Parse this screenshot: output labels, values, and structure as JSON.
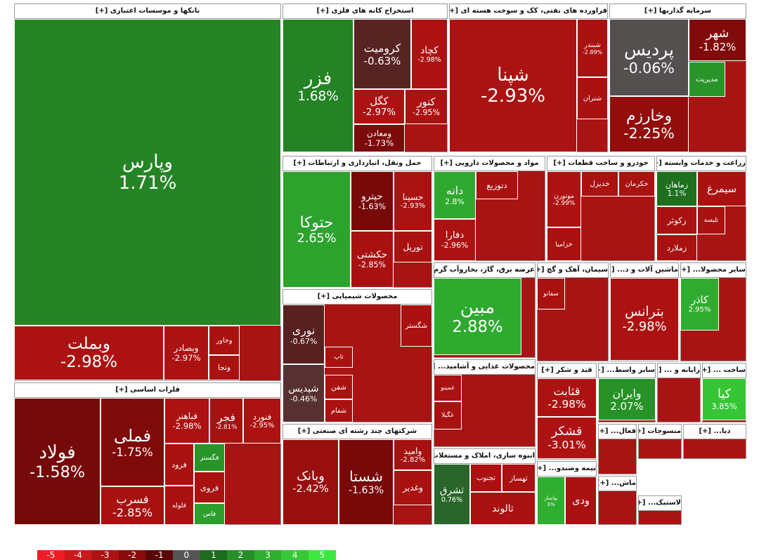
{
  "chart_data": {
    "type": "treemap",
    "sectors": [
      {
        "name": "بانکها و موسسات اعتباری [+]",
        "labels": [
          "وپارس",
          "وبملت",
          "وبصادر",
          "وخاور",
          "وتجا"
        ],
        "values": [
          1.71,
          -2.98,
          -2.97,
          -2.9,
          -2.9
        ],
        "value_labels": [
          "1.71%",
          "-2.98%",
          "-2.97%",
          null,
          null
        ]
      },
      {
        "name": "استخراج کانه های فلزی [+]",
        "labels": [
          "فزر",
          "کرومیت",
          "کچاد",
          "کگل",
          "کنور",
          "ومعادن"
        ],
        "values": [
          1.68,
          -0.63,
          -2.98,
          -2.97,
          -2.95,
          -1.73
        ],
        "value_labels": [
          "1.68%",
          "-0.63%",
          "-2.98%",
          "-2.97%",
          "-2.95%",
          "-1.73%"
        ]
      },
      {
        "name": "فراورده های نفتی، کک و سوخت هسته ای [+]",
        "labels": [
          "شپنا",
          "شبندر",
          "شتران"
        ],
        "values": [
          -2.93,
          -2.89,
          -2.9
        ],
        "value_labels": [
          "-2.93%",
          "-2.89%",
          null
        ]
      },
      {
        "name": "سرمایه گذاریها [+]",
        "labels": [
          "پردیس",
          "وخارزم",
          "شهر",
          "مدیریت"
        ],
        "values": [
          -0.06,
          -2.25,
          -1.82,
          2.2
        ],
        "value_labels": [
          "-0.06%",
          "-2.25%",
          "-1.82%",
          null
        ]
      },
      {
        "name": "حمل ونقل، انبارداری و ارتباطات [+]",
        "labels": [
          "حتوکا",
          "حپترو",
          "حسینا",
          "حکشتی",
          "توریل"
        ],
        "values": [
          2.65,
          -1.63,
          -2.93,
          -2.85,
          -2.9
        ],
        "value_labels": [
          "2.65%",
          "-1.63%",
          "-2.93%",
          "-2.85%",
          null
        ]
      },
      {
        "name": "مواد و محصولات دارویی [+]",
        "labels": [
          "دانه",
          "دتوزیع",
          "دفارا"
        ],
        "values": [
          2.8,
          -2.9,
          -2.96
        ],
        "value_labels": [
          "2.8%",
          null,
          "-2.96%"
        ]
      },
      {
        "name": "خودرو و ساخت قطعات [+]",
        "labels": [
          "موتورن",
          "خدیزل",
          "خکرمان",
          "خزامیا"
        ],
        "values": [
          -2.99,
          -2.9,
          -2.9,
          -2.9
        ],
        "value_labels": [
          "-2.99%",
          null,
          null,
          null
        ]
      },
      {
        "name": "زراعت و خدمات وابسته [+]",
        "labels": [
          "زماهان",
          "سیمرغ",
          "زکوثر",
          "تلیسه",
          "زملارد"
        ],
        "values": [
          1.1,
          -2.9,
          -2.9,
          -2.9,
          -2.9
        ],
        "value_labels": [
          "1.1%",
          null,
          null,
          null,
          null
        ]
      },
      {
        "name": "عرضه برق، گاز، بخاروآب گرم [+]",
        "labels": [
          "مبین"
        ],
        "values": [
          2.88
        ],
        "value_labels": [
          "2.88%"
        ]
      },
      {
        "name": "سیمان، آهک و گچ [+]",
        "labels": [
          "سفانو"
        ],
        "values": [
          -2.9
        ],
        "value_labels": [
          null
        ]
      },
      {
        "name": "ماشین آلات و د... [+]",
        "labels": [
          "بترانس"
        ],
        "values": [
          -2.98
        ],
        "value_labels": [
          "-2.98%"
        ]
      },
      {
        "name": "سایر محصولا... [+]",
        "labels": [
          "کاذر"
        ],
        "values": [
          2.95
        ],
        "value_labels": [
          "2.95%"
        ]
      },
      {
        "name": "محصولات شیمیایی [+]",
        "labels": [
          "نوری",
          "شپدیس",
          "شگستر",
          "تاپ",
          "شفن",
          "شفام"
        ],
        "values": [
          -0.67,
          -0.46,
          -2.9,
          -2.9,
          -2.9,
          -2.9
        ],
        "value_labels": [
          "-0.67%",
          "-0.46%",
          null,
          null,
          null,
          null
        ]
      },
      {
        "name": "محصولات غذایی و آشامید... [+]",
        "labels": [
          "غمینو",
          "غگیلا"
        ],
        "values": [
          -2.9,
          -2.9
        ],
        "value_labels": [
          null,
          null
        ]
      },
      {
        "name": "قند و شکر [+]",
        "labels": [
          "قثابت",
          "قشکر"
        ],
        "values": [
          -2.98,
          -3.01
        ],
        "value_labels": [
          "-2.98%",
          "-3.01%"
        ]
      },
      {
        "name": "سایر واسط... [+]",
        "labels": [
          "وایران"
        ],
        "values": [
          2.07
        ],
        "value_labels": [
          "2.07%"
        ]
      },
      {
        "name": "رایانه و ... [+]",
        "labels": [],
        "values": [],
        "value_labels": []
      },
      {
        "name": "ساخت ... [+]",
        "labels": [
          "کیا"
        ],
        "values": [
          3.85
        ],
        "value_labels": [
          "3.85%"
        ]
      },
      {
        "name": "فلزات اساسی [+]",
        "labels": [
          "فولاد",
          "فملی",
          "فسرب",
          "فباهنر",
          "فجر",
          "فنورد",
          "فرود",
          "فلوله",
          "فگستر",
          "فروی",
          "فاس"
        ],
        "values": [
          -1.58,
          -1.75,
          -2.85,
          -2.98,
          -2.81,
          -2.95,
          -2.9,
          -2.9,
          2.2,
          -2.9,
          2.5
        ],
        "value_labels": [
          "-1.58%",
          "-1.75%",
          "-2.85%",
          "-2.98%",
          "-2.81%",
          "-2.95%",
          null,
          null,
          null,
          null,
          null
        ]
      },
      {
        "name": "شرکتهای چند رشته ای صنعتی [+]",
        "labels": [
          "وبانک",
          "شستا",
          "وامید",
          "وغدیر"
        ],
        "values": [
          -2.42,
          -1.63,
          -2.82,
          -2.9
        ],
        "value_labels": [
          "-2.42%",
          "-1.63%",
          "-2.82%",
          null
        ]
      },
      {
        "name": "انبوه سازی، املاک و مستغلات [+]",
        "labels": [
          "ثشرق",
          "تجنوب",
          "ثهساز",
          "ثالوند"
        ],
        "values": [
          0.76,
          -2.9,
          -2.9,
          -2.9
        ],
        "value_labels": [
          "0.76%",
          null,
          null,
          null
        ]
      },
      {
        "name": "بیمه وصندو... [+]",
        "labels": [
          "بپاسار",
          "ودی"
        ],
        "values": [
          3,
          -2.9
        ],
        "value_labels": [
          "3%",
          null
        ]
      },
      {
        "name": "فعال... [+]",
        "labels": [],
        "values": [],
        "value_labels": []
      },
      {
        "name": "منسوجات [+]",
        "labels": [],
        "values": [],
        "value_labels": []
      },
      {
        "name": "دیا... [+]",
        "labels": [],
        "values": [],
        "value_labels": []
      },
      {
        "name": "ماش... [+]",
        "labels": [],
        "values": [],
        "value_labels": []
      },
      {
        "name": "لاستیک... [+]",
        "labels": [],
        "values": [],
        "value_labels": []
      }
    ],
    "legend": {
      "ticks": [
        -5,
        -4,
        -3,
        -2,
        -1,
        0,
        1,
        2,
        3,
        4,
        5
      ],
      "colors": [
        "#ee1c24",
        "#cc1a1a",
        "#ae1212",
        "#8a0b0b",
        "#5a0606",
        "#555555",
        "#1d6b1d",
        "#288f28",
        "#2fae2f",
        "#36c936",
        "#3de83d"
      ]
    }
  }
}
